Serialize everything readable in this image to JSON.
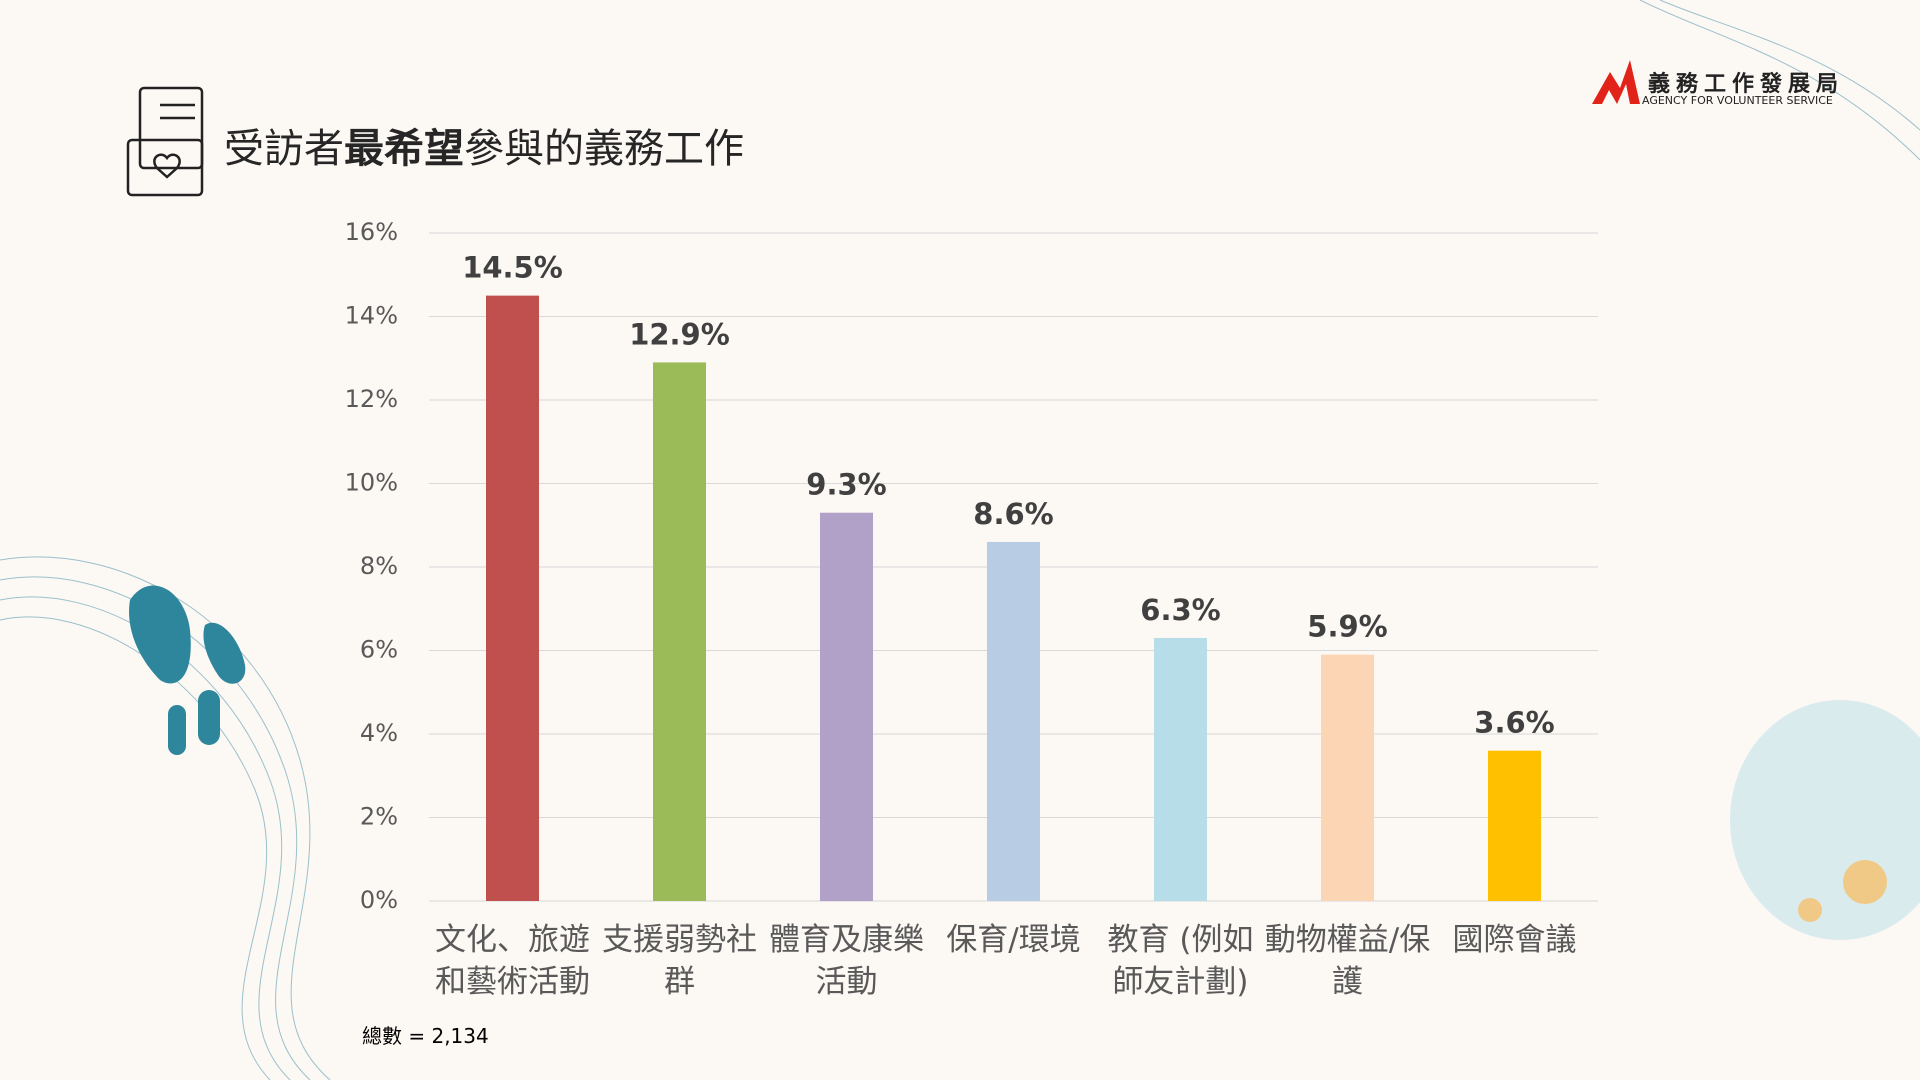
{
  "chart_data": {
    "type": "bar",
    "title_parts": [
      "受訪者",
      "最希望",
      "參與的義務工作"
    ],
    "categories": [
      "文化、旅遊和藝術活動",
      "支援弱勢社群",
      "體育及康樂活動",
      "保育/環境",
      "教育 (例如師友計劃)",
      "動物權益/保護",
      "國際會議"
    ],
    "values": [
      14.5,
      12.9,
      9.3,
      8.6,
      6.3,
      5.9,
      3.6
    ],
    "value_labels": [
      "14.5%",
      "12.9%",
      "9.3%",
      "8.6%",
      "6.3%",
      "5.9%",
      "3.6%"
    ],
    "colors": [
      "#c0504d",
      "#9bbb59",
      "#b1a0c7",
      "#b8cce4",
      "#b7dde8",
      "#fcd5b4",
      "#ffc000"
    ],
    "ylim": [
      0,
      16
    ],
    "yticks": [
      {
        "value": 0,
        "label": "0%"
      },
      {
        "value": 2,
        "label": "2%"
      },
      {
        "value": 4,
        "label": "4%"
      },
      {
        "value": 6,
        "label": "6%"
      },
      {
        "value": 8,
        "label": "8%"
      },
      {
        "value": 10,
        "label": "10%"
      },
      {
        "value": 12,
        "label": "12%"
      },
      {
        "value": 14,
        "label": "14%"
      },
      {
        "value": 16,
        "label": "16%"
      }
    ],
    "grid": true,
    "note": "總數 = 2,134"
  },
  "logo": {
    "name": "義務工作發展局",
    "english": "AGENCY FOR VOLUNTEER SERVICE"
  }
}
